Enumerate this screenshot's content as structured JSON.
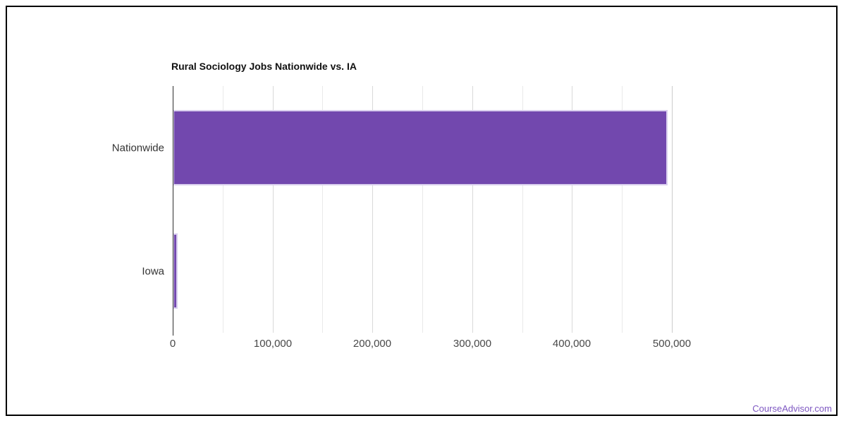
{
  "title": "Rural Sociology Jobs Nationwide vs. IA",
  "watermark": "CourseAdvisor.com",
  "colors": {
    "bar_fill": "#7248ae",
    "bar_stroke": "#d9cfee",
    "axis_line": "#2e2e2e",
    "grid_major": "#d9d9d9",
    "grid_minor": "#e9e9e9",
    "watermark": "#7e57c2",
    "frame_border": "#000000",
    "background": "#ffffff"
  },
  "chart_data": {
    "type": "bar",
    "orientation": "horizontal",
    "title": "Rural Sociology Jobs Nationwide vs. IA",
    "categories": [
      "Nationwide",
      "Iowa"
    ],
    "values": [
      496000,
      4900
    ],
    "xlabel": "",
    "ylabel": "",
    "xlim": [
      0,
      500000
    ],
    "x_major_ticks": [
      0,
      100000,
      200000,
      300000,
      400000,
      500000
    ],
    "x_tick_labels": [
      "0",
      "100,000",
      "200,000",
      "300,000",
      "400,000",
      "500,000"
    ],
    "x_minor_step": 50000,
    "grid": true,
    "legend": false,
    "bar_color": "#7248ae"
  }
}
